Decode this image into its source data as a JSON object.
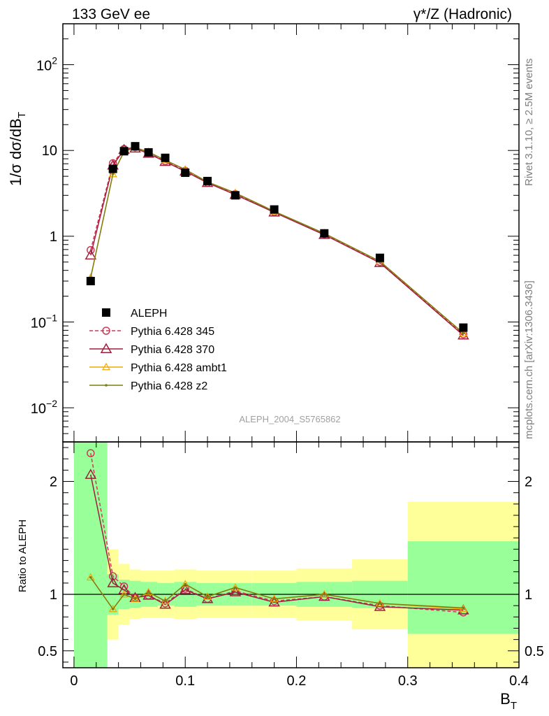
{
  "header": {
    "left": "133 GeV ee",
    "right": "γ*/Z (Hadronic)"
  },
  "side_labels": {
    "rivet": "Rivet 3.1.10, ≥ 2.5M events",
    "mcplots": "mcplots.cern.ch [arXiv:1306.3436]"
  },
  "watermark": "ALEPH_2004_S5765862",
  "colors": {
    "data": "#000000",
    "p345": "#c83c5a",
    "p370": "#a01e3c",
    "ambt1": "#f0a800",
    "z2": "#7d7d14",
    "band_inner": "#99ff99",
    "band_outer": "#ffff99"
  },
  "chart_data": [
    {
      "type": "line",
      "panel": "main",
      "ylabel": "1/σ dσ/dB_T",
      "yscale": "log",
      "ylim": [
        0.004,
        300
      ],
      "xlim": [
        -0.01,
        0.4
      ],
      "y_ticks": [
        "10^-2",
        "10^-1",
        "1",
        "10",
        "10^2"
      ],
      "legend_position": "middle-left",
      "x": [
        0.015,
        0.035,
        0.045,
        0.055,
        0.067,
        0.082,
        0.1,
        0.12,
        0.145,
        0.18,
        0.225,
        0.275,
        0.35
      ],
      "series": [
        {
          "name": "ALEPH",
          "key": "data",
          "marker": "square",
          "values": [
            0.3,
            6.1,
            9.8,
            11.2,
            9.5,
            8.2,
            5.5,
            4.4,
            3.0,
            2.05,
            1.08,
            0.56,
            0.086
          ]
        },
        {
          "name": "Pythia 6.428 345",
          "key": "p345",
          "marker": "open-circle",
          "dashed": true,
          "values": [
            0.69,
            7.1,
            10.4,
            10.9,
            9.4,
            7.5,
            5.8,
            4.2,
            3.1,
            1.92,
            1.06,
            0.5,
            0.072
          ]
        },
        {
          "name": "Pythia 6.428 370",
          "key": "p370",
          "marker": "open-triangle",
          "values": [
            0.6,
            6.7,
            10.2,
            10.6,
            9.2,
            7.4,
            5.7,
            4.2,
            3.05,
            1.9,
            1.04,
            0.49,
            0.07
          ]
        },
        {
          "name": "Pythia 6.428 ambt1",
          "key": "ambt1",
          "marker": "small-triangle",
          "values": [
            0.33,
            5.3,
            9.7,
            10.8,
            9.6,
            7.7,
            6.0,
            4.3,
            3.2,
            1.95,
            1.08,
            0.51,
            0.074
          ]
        },
        {
          "name": "Pythia 6.428 z2",
          "key": "z2",
          "marker": "dot",
          "values": [
            0.33,
            5.3,
            9.7,
            10.8,
            9.6,
            7.7,
            6.0,
            4.3,
            3.2,
            1.95,
            1.08,
            0.51,
            0.074
          ]
        }
      ]
    },
    {
      "type": "line",
      "panel": "ratio",
      "xlabel": "B_T",
      "ylabel": "Ratio to ALEPH",
      "ylim": [
        0.35,
        2.35
      ],
      "xlim": [
        -0.01,
        0.4
      ],
      "x_ticks": [
        "0",
        "0.1",
        "0.2",
        "0.3",
        "0.4"
      ],
      "y_ticks": [
        "0.5",
        "1",
        "2"
      ],
      "bands": {
        "edges": [
          0.0,
          0.03,
          0.04,
          0.05,
          0.06,
          0.075,
          0.09,
          0.11,
          0.13,
          0.16,
          0.2,
          0.25,
          0.3,
          0.4
        ],
        "inner_low": [
          0.35,
          0.82,
          0.87,
          0.88,
          0.89,
          0.9,
          0.89,
          0.9,
          0.9,
          0.9,
          0.89,
          0.88,
          0.65
        ],
        "inner_high": [
          2.35,
          1.18,
          1.13,
          1.12,
          1.11,
          1.1,
          1.11,
          1.1,
          1.1,
          1.1,
          1.11,
          1.12,
          1.47
        ],
        "outer_low": [
          0.35,
          0.6,
          0.73,
          0.78,
          0.79,
          0.79,
          0.78,
          0.79,
          0.79,
          0.79,
          0.77,
          0.69,
          0.35
        ],
        "outer_high": [
          2.35,
          1.4,
          1.27,
          1.22,
          1.21,
          1.21,
          1.22,
          1.21,
          1.21,
          1.21,
          1.23,
          1.31,
          1.82
        ]
      },
      "x": [
        0.015,
        0.035,
        0.045,
        0.055,
        0.067,
        0.082,
        0.1,
        0.12,
        0.145,
        0.18,
        0.225,
        0.275,
        0.35
      ],
      "series": [
        {
          "name": "Pythia 6.428 345",
          "key": "p345",
          "marker": "open-circle",
          "dashed": true,
          "values": [
            2.25,
            1.16,
            1.07,
            0.97,
            0.99,
            0.92,
            1.05,
            0.96,
            1.03,
            0.94,
            0.98,
            0.9,
            0.84
          ]
        },
        {
          "name": "Pythia 6.428 370",
          "key": "p370",
          "marker": "open-triangle",
          "values": [
            2.06,
            1.1,
            1.04,
            0.97,
            0.99,
            0.91,
            1.04,
            0.96,
            1.02,
            0.93,
            0.98,
            0.89,
            0.86
          ]
        },
        {
          "name": "Pythia 6.428 ambt1",
          "key": "ambt1",
          "marker": "small-triangle",
          "values": [
            1.15,
            0.87,
            1.0,
            0.96,
            1.02,
            0.94,
            1.09,
            0.98,
            1.06,
            0.96,
            1.0,
            0.92,
            0.87
          ]
        },
        {
          "name": "Pythia 6.428 z2",
          "key": "z2",
          "marker": "dot",
          "values": [
            1.15,
            0.87,
            1.0,
            0.96,
            1.02,
            0.94,
            1.09,
            0.98,
            1.06,
            0.96,
            1.0,
            0.92,
            0.88
          ]
        }
      ]
    }
  ]
}
